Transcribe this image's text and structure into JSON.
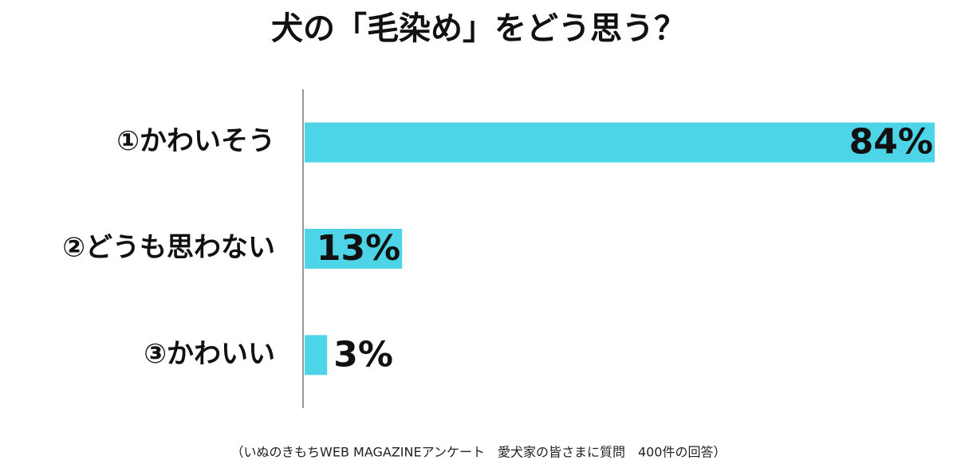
{
  "chart_data": {
    "type": "bar",
    "orientation": "horizontal",
    "title": "犬の「毛染め」をどう思う？",
    "categories": [
      "①かわいそう",
      "②どうも思わない",
      "③かわいい"
    ],
    "values": [
      84,
      13,
      3
    ],
    "value_labels": [
      "84%",
      "13%",
      "3%"
    ],
    "color": "#4dd4e6",
    "note": "（いぬのきもちWEB MAGAZINEアンケート　愛犬家の皆さまに質問　400件の回答）"
  }
}
